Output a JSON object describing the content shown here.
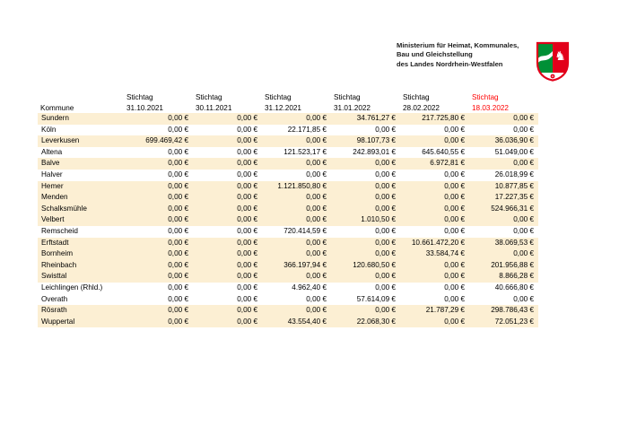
{
  "header": {
    "ministry_lines": [
      "Ministerium für Heimat, Kommunales,",
      "Bau und Gleichstellung",
      "des Landes Nordrhein-Westfalen"
    ],
    "logo": "nrw-coat-of-arms"
  },
  "colors": {
    "row_highlight": "#FCEFD3",
    "header_accent": "#FF0000",
    "text": "#000000",
    "nrw_green": "#009036",
    "nrw_red": "#E2001A"
  },
  "table": {
    "kommune_header": "Kommune",
    "columns": [
      {
        "label": "Stichtag",
        "date": "31.10.2021",
        "accent": false
      },
      {
        "label": "Stichtag",
        "date": "30.11.2021",
        "accent": false
      },
      {
        "label": "Stichtag",
        "date": "31.12.2021",
        "accent": false
      },
      {
        "label": "Stichtag",
        "date": "31.01.2022",
        "accent": false
      },
      {
        "label": "Stichtag",
        "date": "28.02.2022",
        "accent": false
      },
      {
        "label": "Stichtag",
        "date": "18.03.2022",
        "accent": true
      }
    ],
    "rows": [
      {
        "kommune": "Sundern",
        "highlighted": true,
        "values": [
          "0,00 €",
          "0,00 €",
          "0,00 €",
          "34.761,27 €",
          "217.725,80 €",
          "0,00 €"
        ]
      },
      {
        "kommune": "Köln",
        "highlighted": false,
        "values": [
          "0,00 €",
          "0,00 €",
          "22.171,85 €",
          "0,00 €",
          "0,00 €",
          "0,00 €"
        ]
      },
      {
        "kommune": "Leverkusen",
        "highlighted": true,
        "values": [
          "699.469,42 €",
          "0,00 €",
          "0,00 €",
          "98.107,73 €",
          "0,00 €",
          "36.036,90 €"
        ]
      },
      {
        "kommune": "Altena",
        "highlighted": false,
        "values": [
          "0,00 €",
          "0,00 €",
          "121.523,17 €",
          "242.893,01 €",
          "645.640,55 €",
          "51.049,00 €"
        ]
      },
      {
        "kommune": "Balve",
        "highlighted": true,
        "values": [
          "0,00 €",
          "0,00 €",
          "0,00 €",
          "0,00 €",
          "6.972,81 €",
          "0,00 €"
        ]
      },
      {
        "kommune": "Halver",
        "highlighted": false,
        "values": [
          "0,00 €",
          "0,00 €",
          "0,00 €",
          "0,00 €",
          "0,00 €",
          "26.018,99 €"
        ]
      },
      {
        "kommune": "Hemer",
        "highlighted": true,
        "values": [
          "0,00 €",
          "0,00 €",
          "1.121.850,80 €",
          "0,00 €",
          "0,00 €",
          "10.877,85 €"
        ]
      },
      {
        "kommune": "Menden",
        "highlighted": true,
        "values": [
          "0,00 €",
          "0,00 €",
          "0,00 €",
          "0,00 €",
          "0,00 €",
          "17.227,35 €"
        ]
      },
      {
        "kommune": "Schalksmühle",
        "highlighted": true,
        "values": [
          "0,00 €",
          "0,00 €",
          "0,00 €",
          "0,00 €",
          "0,00 €",
          "524.966,31 €"
        ]
      },
      {
        "kommune": "Velbert",
        "highlighted": true,
        "values": [
          "0,00 €",
          "0,00 €",
          "0,00 €",
          "1.010,50 €",
          "0,00 €",
          "0,00 €"
        ]
      },
      {
        "kommune": "Remscheid",
        "highlighted": false,
        "values": [
          "0,00 €",
          "0,00 €",
          "720.414,59 €",
          "0,00 €",
          "0,00 €",
          "0,00 €"
        ]
      },
      {
        "kommune": "Erftstadt",
        "highlighted": true,
        "values": [
          "0,00 €",
          "0,00 €",
          "0,00 €",
          "0,00 €",
          "10.661.472,20 €",
          "38.069,53 €"
        ]
      },
      {
        "kommune": "Bornheim",
        "highlighted": true,
        "values": [
          "0,00 €",
          "0,00 €",
          "0,00 €",
          "0,00 €",
          "33.584,74 €",
          "0,00 €"
        ]
      },
      {
        "kommune": "Rheinbach",
        "highlighted": true,
        "values": [
          "0,00 €",
          "0,00 €",
          "366.197,94 €",
          "120.680,50 €",
          "0,00 €",
          "201.956,88 €"
        ]
      },
      {
        "kommune": "Swisttal",
        "highlighted": true,
        "values": [
          "0,00 €",
          "0,00 €",
          "0,00 €",
          "0,00 €",
          "0,00 €",
          "8.866,28 €"
        ]
      },
      {
        "kommune": "Leichlingen (Rhld.)",
        "highlighted": false,
        "values": [
          "0,00 €",
          "0,00 €",
          "4.962,40 €",
          "0,00 €",
          "0,00 €",
          "40.666,80 €"
        ]
      },
      {
        "kommune": "Overath",
        "highlighted": false,
        "values": [
          "0,00 €",
          "0,00 €",
          "0,00 €",
          "57.614,09 €",
          "0,00 €",
          "0,00 €"
        ]
      },
      {
        "kommune": "Rösrath",
        "highlighted": true,
        "values": [
          "0,00 €",
          "0,00 €",
          "0,00 €",
          "0,00 €",
          "21.787,29 €",
          "298.786,43 €"
        ]
      },
      {
        "kommune": "Wuppertal",
        "highlighted": true,
        "values": [
          "0,00 €",
          "0,00 €",
          "43.554,40 €",
          "22.068,30 €",
          "0,00 €",
          "72.051,23 €"
        ]
      }
    ]
  }
}
